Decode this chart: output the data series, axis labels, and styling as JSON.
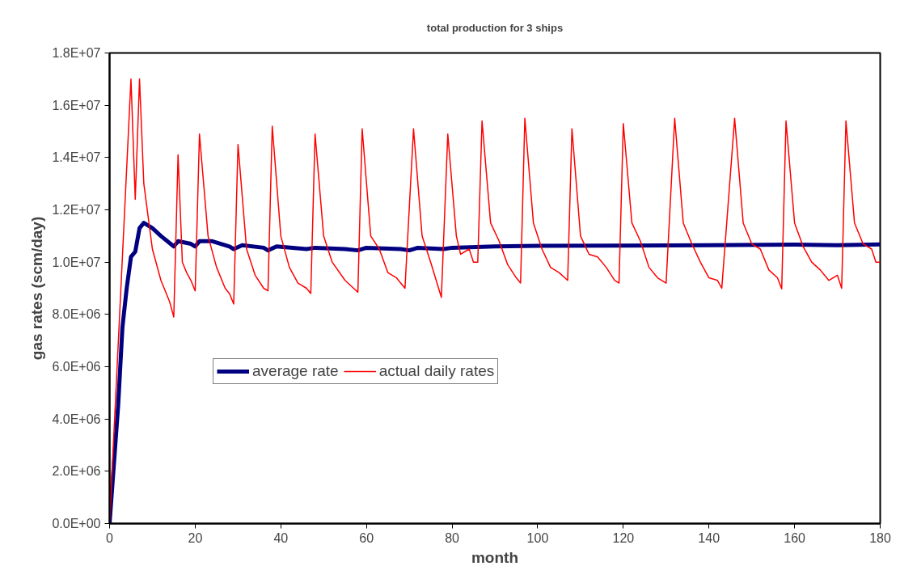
{
  "chart_data": {
    "type": "line",
    "title": "total production for 3 ships",
    "xlabel": "month",
    "ylabel": "gas rates (scm/day)",
    "xlim": [
      0,
      180
    ],
    "xticks": [
      0,
      20,
      40,
      60,
      80,
      100,
      120,
      140,
      160,
      180
    ],
    "ylim": [
      0,
      18000000
    ],
    "yticks": [
      {
        "value": 0,
        "label": "0.0E+00"
      },
      {
        "value": 2000000,
        "label": "2.0E+06"
      },
      {
        "value": 4000000,
        "label": "4.0E+06"
      },
      {
        "value": 6000000,
        "label": "6.0E+06"
      },
      {
        "value": 8000000,
        "label": "8.0E+06"
      },
      {
        "value": 10000000,
        "label": "1.0E+07"
      },
      {
        "value": 12000000,
        "label": "1.2E+07"
      },
      {
        "value": 14000000,
        "label": "1.4E+07"
      },
      {
        "value": 16000000,
        "label": "1.6E+07"
      },
      {
        "value": 18000000,
        "label": "1.8E+07"
      }
    ],
    "grid": false,
    "legend": "center left",
    "marker": "none",
    "series": [
      {
        "name": "average rate",
        "color": "#000080",
        "x": [
          0,
          2,
          3,
          4,
          5,
          6,
          7,
          8,
          10,
          12,
          15,
          16,
          19,
          20,
          21,
          24,
          28,
          29,
          31,
          36,
          37,
          39,
          46,
          48,
          55,
          58,
          60,
          68,
          70,
          72,
          78,
          80,
          90,
          100,
          120,
          140,
          160,
          170,
          180
        ],
        "values": [
          0,
          4500000,
          7500000,
          9000000,
          10200000,
          10400000,
          11300000,
          11500000,
          11300000,
          11000000,
          10600000,
          10800000,
          10700000,
          10600000,
          10800000,
          10800000,
          10600000,
          10500000,
          10650000,
          10550000,
          10450000,
          10600000,
          10500000,
          10550000,
          10500000,
          10450000,
          10550000,
          10500000,
          10450000,
          10550000,
          10500000,
          10550000,
          10600000,
          10620000,
          10630000,
          10650000,
          10670000,
          10650000,
          10680000
        ]
      },
      {
        "name": "actual daily rates",
        "color": "#ff0000",
        "x": [
          0,
          5,
          6,
          7,
          8,
          10,
          12,
          14,
          15,
          16,
          17,
          18,
          19,
          20,
          21,
          23,
          25,
          27,
          28,
          29,
          30,
          32,
          34,
          36,
          37,
          38,
          40,
          42,
          44,
          46,
          47,
          48,
          50,
          52,
          55,
          57,
          58,
          59,
          61,
          63,
          65,
          67,
          69,
          71,
          73,
          75,
          77.5,
          79,
          81,
          82,
          84,
          85,
          86,
          87,
          89,
          91,
          93,
          95,
          96,
          97,
          99,
          101,
          103,
          105,
          107,
          108,
          110,
          112,
          114,
          116,
          118,
          119,
          120,
          122,
          124,
          126,
          128,
          130,
          132,
          134,
          136,
          138,
          140,
          142,
          143,
          146,
          148,
          150,
          152,
          154,
          156,
          157,
          158,
          160,
          162,
          164,
          166,
          168,
          170,
          171,
          172,
          174,
          176,
          178,
          179,
          180
        ],
        "values": [
          0,
          17000000,
          12400000,
          17000000,
          13000000,
          10500000,
          9300000,
          8500000,
          7900000,
          14100000,
          10000000,
          9600000,
          9300000,
          8900000,
          14900000,
          11000000,
          9800000,
          9000000,
          8800000,
          8400000,
          14500000,
          10500000,
          9500000,
          9000000,
          8900000,
          15200000,
          11000000,
          9800000,
          9200000,
          9000000,
          8800000,
          14900000,
          11000000,
          10000000,
          9300000,
          9000000,
          8850000,
          15100000,
          11000000,
          10500000,
          9600000,
          9400000,
          9000000,
          15100000,
          11000000,
          10000000,
          8650000,
          14900000,
          11000000,
          10300000,
          10500000,
          10000000,
          10000000,
          15400000,
          11500000,
          10800000,
          9900000,
          9400000,
          9200000,
          15500000,
          11500000,
          10500000,
          9800000,
          9600000,
          9300000,
          15100000,
          11000000,
          10300000,
          10200000,
          9800000,
          9300000,
          9200000,
          15300000,
          11500000,
          10800000,
          9800000,
          9400000,
          9200000,
          15500000,
          11500000,
          10700000,
          10000000,
          9400000,
          9300000,
          9000000,
          15500000,
          11500000,
          10700000,
          10500000,
          9700000,
          9400000,
          8980000,
          15400000,
          11500000,
          10600000,
          10000000,
          9700000,
          9300000,
          9500000,
          9000000,
          15400000,
          11500000,
          10700000,
          10500000,
          10000000,
          10000000
        ]
      }
    ]
  }
}
